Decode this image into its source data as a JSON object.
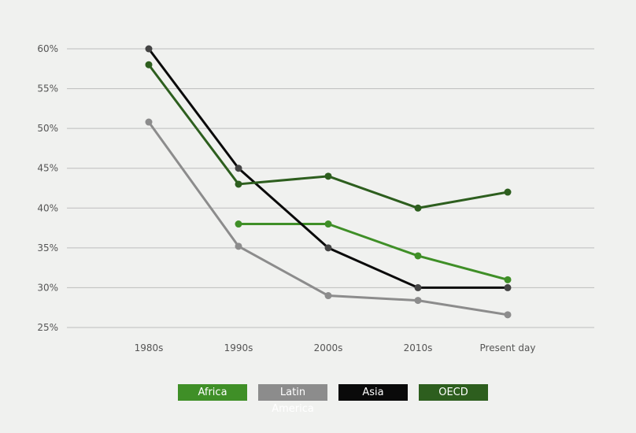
{
  "chart_data": {
    "type": "line",
    "categories": [
      "1980s",
      "1990s",
      "2000s",
      "2010s",
      "Present day"
    ],
    "ylim": [
      25,
      60
    ],
    "yticks": [
      25,
      30,
      35,
      40,
      45,
      50,
      55,
      60
    ],
    "ytick_labels": [
      "25%",
      "30%",
      "35%",
      "40%",
      "45%",
      "50%",
      "55%",
      "60%"
    ],
    "grid": true,
    "legend_position": "bottom",
    "series": [
      {
        "name": "Africa",
        "color": "#3f8f27",
        "values": [
          null,
          38,
          38,
          34,
          31
        ]
      },
      {
        "name": "Latin America",
        "color": "#8c8c8c",
        "values": [
          50.8,
          35.2,
          29,
          28.4,
          26.6
        ]
      },
      {
        "name": "Asia",
        "color": "#0a0a0a",
        "values": [
          60,
          45,
          35,
          30,
          30
        ]
      },
      {
        "name": "OECD",
        "color": "#2d5e1e",
        "values": [
          58,
          43,
          44,
          40,
          42
        ]
      }
    ]
  }
}
